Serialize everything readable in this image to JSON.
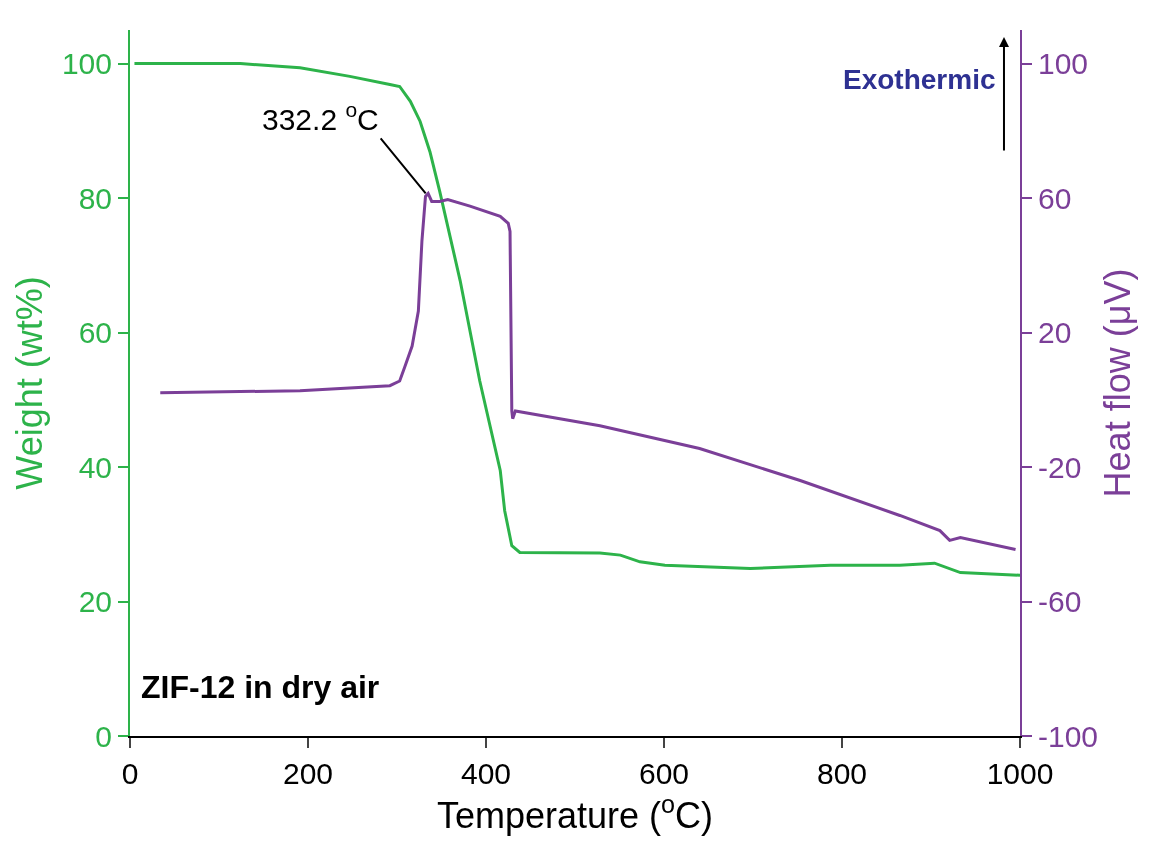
{
  "chart_data": {
    "type": "line",
    "xlabel": "Temperature ($^{o}$C)",
    "ylabel": "Weight (wt%)",
    "y2label": "Heat flow (μV)",
    "xlim": [
      0,
      1000
    ],
    "xticks": [
      0,
      200,
      400,
      600,
      800,
      1000
    ],
    "ylim": [
      0,
      105
    ],
    "yticks": [
      0,
      20,
      40,
      60,
      80,
      100
    ],
    "y2lim": [
      -100,
      110
    ],
    "y2ticks": [
      -100,
      -60,
      -20,
      20,
      60,
      100
    ],
    "marker": "none",
    "line_style": "solid",
    "series": [
      {
        "color": "#2db34a",
        "x": [
          5,
          124,
          191,
          247,
          292,
          303,
          315,
          326,
          337,
          348,
          371,
          393,
          416,
          421,
          429,
          438,
          528,
          551,
          573,
          601,
          697,
          787,
          865,
          904,
          933,
          1000
        ],
        "values": [
          100,
          100,
          99.4,
          98.1,
          96.9,
          96.6,
          94.4,
          91.4,
          86.9,
          81,
          67.7,
          52.8,
          39.5,
          33.5,
          28.3,
          27.3,
          27.2,
          26.9,
          25.9,
          25.4,
          24.9,
          25.4,
          25.4,
          25.7,
          24.3,
          23.9
        ]
      },
      {
        "color": "#7b3f98",
        "axis": "y2",
        "x": [
          34,
          191,
          292,
          303,
          309,
          317,
          324,
          328,
          332,
          335,
          339,
          348,
          357,
          382,
          416,
          425,
          427,
          429,
          430,
          433,
          528,
          640,
          753,
          865,
          910,
          921,
          933,
          995
        ],
        "values": [
          2.1,
          2.7,
          4.2,
          5.6,
          10,
          16,
          26.4,
          47.2,
          60.5,
          61.4,
          59,
          59,
          59.6,
          57.6,
          54.6,
          52.5,
          50.1,
          -3.3,
          -5.6,
          -3.3,
          -7.7,
          -14.5,
          -24,
          -34.4,
          -38.9,
          -41.8,
          -41,
          -44.5
        ]
      }
    ],
    "annotations": [
      {
        "text": "332.2 $^{o}$C",
        "x": 332.2,
        "y": 80.7
      },
      "Exothermic",
      "ZIF-12 in dry air"
    ]
  }
}
